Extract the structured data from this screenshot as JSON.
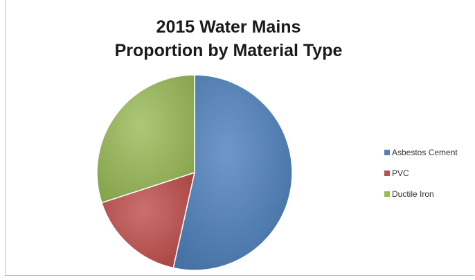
{
  "chart_data": {
    "type": "pie",
    "title_line1": "2015 Water Mains",
    "title_line2": "Proportion by Material Type",
    "categories": [
      "Asbestos Cement",
      "PVC",
      "Ductile Iron"
    ],
    "values": [
      53.5,
      16.5,
      30.0
    ],
    "colors": [
      "#4f81bd",
      "#c0504d",
      "#9bbb59"
    ],
    "start_angle_deg": 0,
    "direction": "clockwise",
    "legend_position": "right"
  }
}
